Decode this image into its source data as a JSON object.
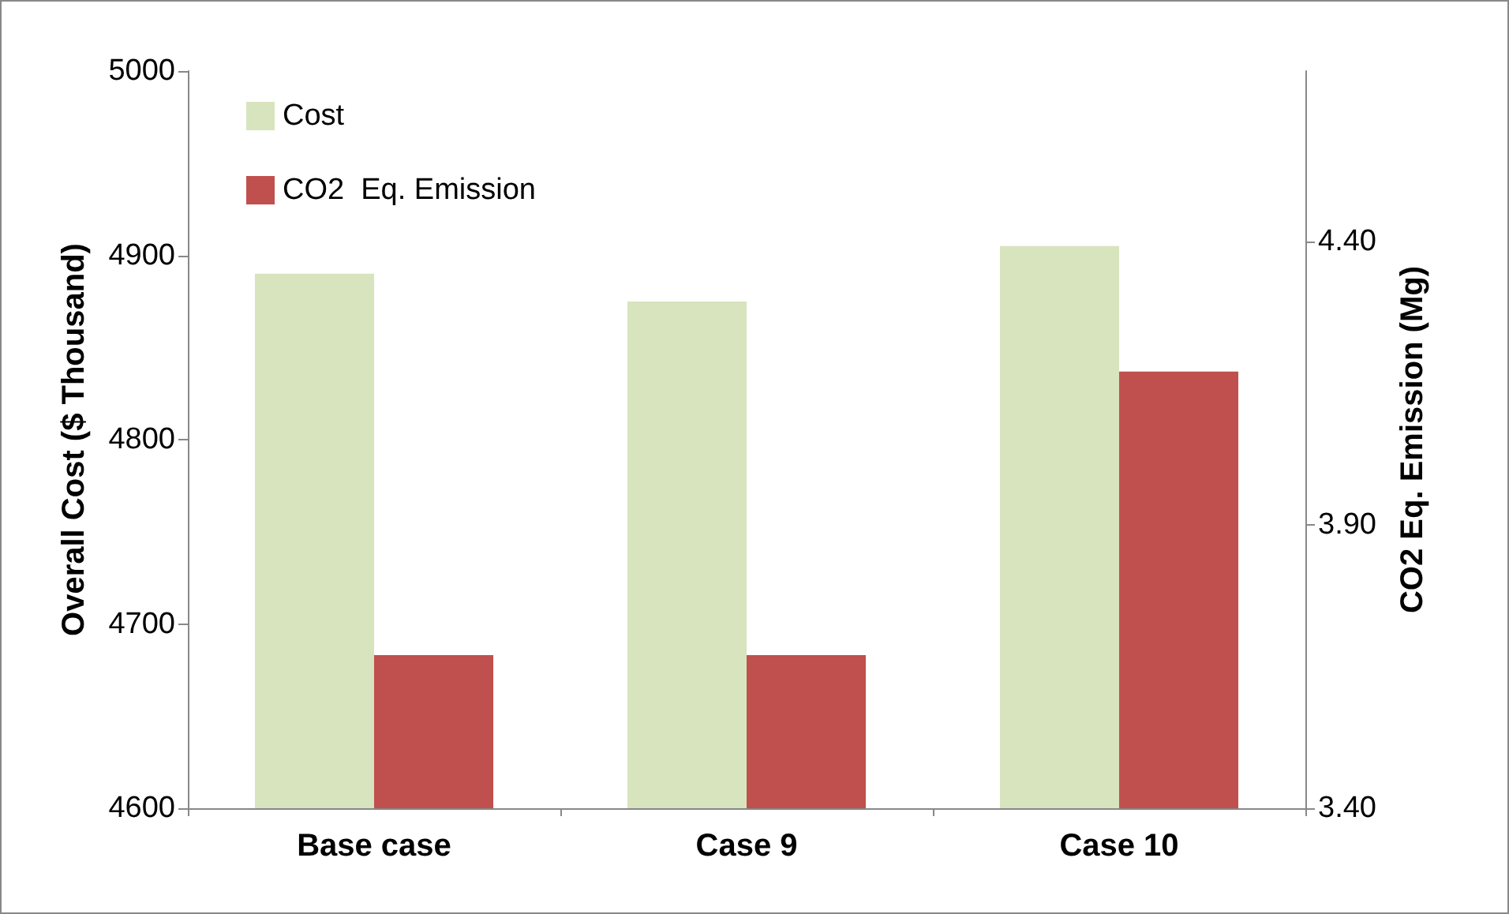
{
  "chart_data": {
    "type": "bar",
    "categories": [
      "Base case",
      "Case 9",
      "Case 10"
    ],
    "series": [
      {
        "name": "Cost",
        "color": "#d7e4bd",
        "values": [
          4890,
          4875,
          4905
        ]
      },
      {
        "name": "CO2  Eq. Emission",
        "color": "#c0504d",
        "values": [
          3.67,
          3.67,
          4.17
        ],
        "axis": "y2"
      }
    ],
    "ylabel": "Overall Cost ($ Thousand)",
    "y2label": "CO2 Eq. Emission (Mg)",
    "ylim": [
      4600,
      5000
    ],
    "yticks": [
      4600,
      4700,
      4800,
      4900,
      5000
    ],
    "y2lim": [
      3.4,
      4.7
    ],
    "y2ticks": [
      {
        "value": 3.4,
        "label": "3.40"
      },
      {
        "value": 3.9,
        "label": "3.90"
      },
      {
        "value": 4.4,
        "label": "4.40"
      }
    ],
    "legend": "top left",
    "grid": false
  }
}
